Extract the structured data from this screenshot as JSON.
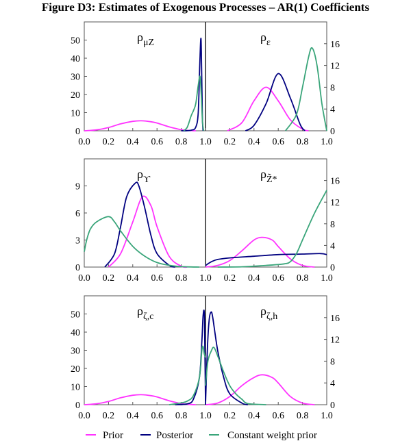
{
  "title": "Figure D3: Estimates of Exogenous Processes – AR(1) Coefficients",
  "colors": {
    "prior": "#ff33ff",
    "posterior": "#000080",
    "cwp": "#3aa57a"
  },
  "chart_data": {
    "type": "line",
    "legend": {
      "placement": "bottom",
      "entries": [
        {
          "key": "prior",
          "label": "Prior"
        },
        {
          "key": "posterior",
          "label": "Posterior"
        },
        {
          "key": "cwp",
          "label": "Constant weight prior"
        }
      ]
    },
    "rows": [
      {
        "left_yticks": [
          "0",
          "10",
          "20",
          "30",
          "40",
          "50"
        ],
        "left_ytick_values": [
          0,
          10,
          20,
          30,
          40,
          50
        ],
        "left_ylim": [
          0,
          60
        ],
        "right_yticks": [
          "0",
          "4",
          "8",
          "12",
          "16"
        ],
        "right_ytick_values": [
          0,
          4,
          8,
          12,
          16
        ],
        "right_ylim": [
          0,
          20
        ]
      },
      {
        "left_yticks": [
          "0",
          "3",
          "6",
          "9"
        ],
        "left_ytick_values": [
          0,
          3,
          6,
          9
        ],
        "left_ylim": [
          0,
          12
        ],
        "right_yticks": [
          "0",
          "4",
          "8",
          "12",
          "16"
        ],
        "right_ytick_values": [
          0,
          4,
          8,
          12,
          16
        ],
        "right_ylim": [
          0,
          20
        ]
      },
      {
        "left_yticks": [
          "0",
          "10",
          "20",
          "30",
          "40",
          "50"
        ],
        "left_ytick_values": [
          0,
          10,
          20,
          30,
          40,
          50
        ],
        "left_ylim": [
          0,
          60
        ],
        "right_yticks": [
          "0",
          "4",
          "8",
          "12",
          "16"
        ],
        "right_ytick_values": [
          0,
          4,
          8,
          12,
          16
        ],
        "right_ylim": [
          0,
          20
        ]
      }
    ],
    "left_xticks": [
      "0.0",
      "0.2",
      "0.4",
      "0.6",
      "0.8",
      "1.0"
    ],
    "right_xticks": [
      "0.2",
      "0.4",
      "0.6",
      "0.8",
      "1.0"
    ],
    "xlim": [
      0,
      1
    ],
    "panels": [
      {
        "symbol": "ρ",
        "subscript": "μZ",
        "side": "left",
        "row": 0,
        "series": {
          "prior": [
            [
              0,
              0
            ],
            [
              0.1,
              0.5
            ],
            [
              0.2,
              1.8
            ],
            [
              0.3,
              3.8
            ],
            [
              0.4,
              5.2
            ],
            [
              0.47,
              5.5
            ],
            [
              0.55,
              5.0
            ],
            [
              0.6,
              4.3
            ],
            [
              0.7,
              2.2
            ],
            [
              0.8,
              0.6
            ],
            [
              0.88,
              0.1
            ],
            [
              0.92,
              0
            ]
          ],
          "posterior": [
            [
              0.8,
              0
            ],
            [
              0.88,
              0.3
            ],
            [
              0.92,
              2
            ],
            [
              0.94,
              10
            ],
            [
              0.952,
              35
            ],
            [
              0.962,
              51
            ],
            [
              0.968,
              35
            ],
            [
              0.974,
              8
            ],
            [
              0.98,
              0
            ]
          ],
          "cwp": [
            [
              0.82,
              0
            ],
            [
              0.85,
              2
            ],
            [
              0.88,
              8
            ],
            [
              0.9,
              11
            ],
            [
              0.92,
              15
            ],
            [
              0.94,
              25
            ],
            [
              0.955,
              30
            ],
            [
              0.965,
              20
            ],
            [
              0.975,
              5
            ],
            [
              0.985,
              0
            ]
          ]
        }
      },
      {
        "symbol": "ρ",
        "subscript": "ε",
        "side": "right",
        "row": 0,
        "series": {
          "prior": [
            [
              0.18,
              0
            ],
            [
              0.3,
              1.5
            ],
            [
              0.4,
              5.5
            ],
            [
              0.5,
              8.0
            ],
            [
              0.6,
              5.5
            ],
            [
              0.7,
              2
            ],
            [
              0.8,
              0.3
            ],
            [
              0.85,
              0
            ]
          ],
          "posterior": [
            [
              0.33,
              0
            ],
            [
              0.4,
              1
            ],
            [
              0.5,
              5
            ],
            [
              0.6,
              10.5
            ],
            [
              0.7,
              6
            ],
            [
              0.78,
              1.2
            ],
            [
              0.82,
              0
            ]
          ],
          "cwp": [
            [
              0.66,
              0
            ],
            [
              0.75,
              3
            ],
            [
              0.8,
              8
            ],
            [
              0.85,
              13.5
            ],
            [
              0.88,
              15.2
            ],
            [
              0.92,
              12
            ],
            [
              0.96,
              5
            ],
            [
              1.0,
              0
            ]
          ]
        }
      },
      {
        "symbol": "ρ",
        "subscript": "ϒ",
        "side": "left",
        "row": 1,
        "series": {
          "prior": [
            [
              0.2,
              0
            ],
            [
              0.3,
              1.5
            ],
            [
              0.4,
              5
            ],
            [
              0.48,
              7.8
            ],
            [
              0.55,
              6.8
            ],
            [
              0.6,
              4.5
            ],
            [
              0.7,
              1.2
            ],
            [
              0.8,
              0.1
            ],
            [
              0.85,
              0
            ]
          ],
          "posterior": [
            [
              0.17,
              0
            ],
            [
              0.25,
              1.5
            ],
            [
              0.3,
              4.5
            ],
            [
              0.35,
              7.8
            ],
            [
              0.42,
              9.3
            ],
            [
              0.45,
              9
            ],
            [
              0.5,
              6.5
            ],
            [
              0.55,
              3.5
            ],
            [
              0.6,
              1.5
            ],
            [
              0.7,
              0.2
            ],
            [
              0.75,
              0
            ]
          ],
          "cwp": [
            [
              0.0,
              1.7
            ],
            [
              0.02,
              3
            ],
            [
              0.05,
              4.2
            ],
            [
              0.1,
              5
            ],
            [
              0.2,
              5.6
            ],
            [
              0.25,
              5
            ],
            [
              0.3,
              4
            ],
            [
              0.4,
              2.3
            ],
            [
              0.5,
              1.2
            ],
            [
              0.6,
              0.5
            ],
            [
              0.7,
              0.2
            ],
            [
              0.8,
              0.05
            ],
            [
              0.95,
              0
            ]
          ]
        }
      },
      {
        "symbol": "ρ",
        "subscript": "Z̃*",
        "side": "right",
        "row": 1,
        "series": {
          "prior": [
            [
              0,
              0
            ],
            [
              0.1,
              0.3
            ],
            [
              0.2,
              1.2
            ],
            [
              0.3,
              3
            ],
            [
              0.4,
              5
            ],
            [
              0.47,
              5.5
            ],
            [
              0.55,
              5
            ],
            [
              0.6,
              3.8
            ],
            [
              0.7,
              1.5
            ],
            [
              0.8,
              0.3
            ],
            [
              0.9,
              0
            ]
          ],
          "posterior": [
            [
              0,
              0.3
            ],
            [
              0.05,
              1
            ],
            [
              0.1,
              1.4
            ],
            [
              0.2,
              1.7
            ],
            [
              0.4,
              2
            ],
            [
              0.6,
              2.3
            ],
            [
              0.8,
              2.4
            ],
            [
              0.95,
              2.5
            ],
            [
              1.0,
              2.3
            ]
          ],
          "cwp": [
            [
              0.1,
              0
            ],
            [
              0.3,
              0.05
            ],
            [
              0.5,
              0.3
            ],
            [
              0.65,
              0.6
            ],
            [
              0.7,
              1
            ],
            [
              0.75,
              2.5
            ],
            [
              0.8,
              5
            ],
            [
              0.9,
              10
            ],
            [
              1.0,
              14.2
            ]
          ]
        }
      },
      {
        "symbol": "ρ",
        "subscript": "ζ,c",
        "side": "left",
        "row": 2,
        "series": {
          "prior": [
            [
              0,
              0
            ],
            [
              0.1,
              0.5
            ],
            [
              0.2,
              1.8
            ],
            [
              0.3,
              3.8
            ],
            [
              0.4,
              5.2
            ],
            [
              0.47,
              5.5
            ],
            [
              0.55,
              5.0
            ],
            [
              0.6,
              4.3
            ],
            [
              0.7,
              2.2
            ],
            [
              0.8,
              0.6
            ],
            [
              0.88,
              0.1
            ],
            [
              0.92,
              0
            ]
          ],
          "posterior": [
            [
              0.75,
              0
            ],
            [
              0.85,
              0.5
            ],
            [
              0.9,
              3
            ],
            [
              0.95,
              15
            ],
            [
              0.97,
              35
            ],
            [
              0.98,
              49
            ],
            [
              0.99,
              50.5
            ],
            [
              0.995,
              30
            ],
            [
              1.0,
              2
            ]
          ],
          "cwp": [
            [
              0.7,
              0
            ],
            [
              0.8,
              1
            ],
            [
              0.85,
              2
            ],
            [
              0.9,
              5
            ],
            [
              0.95,
              15
            ],
            [
              0.97,
              30
            ],
            [
              0.98,
              32
            ],
            [
              0.99,
              28
            ],
            [
              1.0,
              26
            ]
          ]
        }
      },
      {
        "symbol": "ρ",
        "subscript": "ζ,h",
        "side": "right",
        "row": 2,
        "series": {
          "prior": [
            [
              0,
              0
            ],
            [
              0.1,
              0.3
            ],
            [
              0.2,
              1.5
            ],
            [
              0.3,
              3.5
            ],
            [
              0.4,
              5
            ],
            [
              0.47,
              5.5
            ],
            [
              0.55,
              5
            ],
            [
              0.6,
              4
            ],
            [
              0.7,
              1.5
            ],
            [
              0.8,
              0.3
            ],
            [
              0.9,
              0
            ]
          ],
          "posterior": [
            [
              0.0,
              0
            ],
            [
              0.015,
              10
            ],
            [
              0.03,
              15.5
            ],
            [
              0.045,
              17
            ],
            [
              0.06,
              16
            ],
            [
              0.1,
              10
            ],
            [
              0.15,
              5
            ],
            [
              0.2,
              2
            ],
            [
              0.3,
              0.3
            ],
            [
              0.35,
              0
            ]
          ],
          "cwp": [
            [
              0.0,
              3.5
            ],
            [
              0.02,
              8
            ],
            [
              0.05,
              10
            ],
            [
              0.07,
              10.5
            ],
            [
              0.1,
              9
            ],
            [
              0.15,
              6
            ],
            [
              0.2,
              3.5
            ],
            [
              0.25,
              2
            ],
            [
              0.3,
              1
            ],
            [
              0.35,
              0.2
            ],
            [
              0.5,
              0
            ]
          ]
        }
      }
    ]
  }
}
